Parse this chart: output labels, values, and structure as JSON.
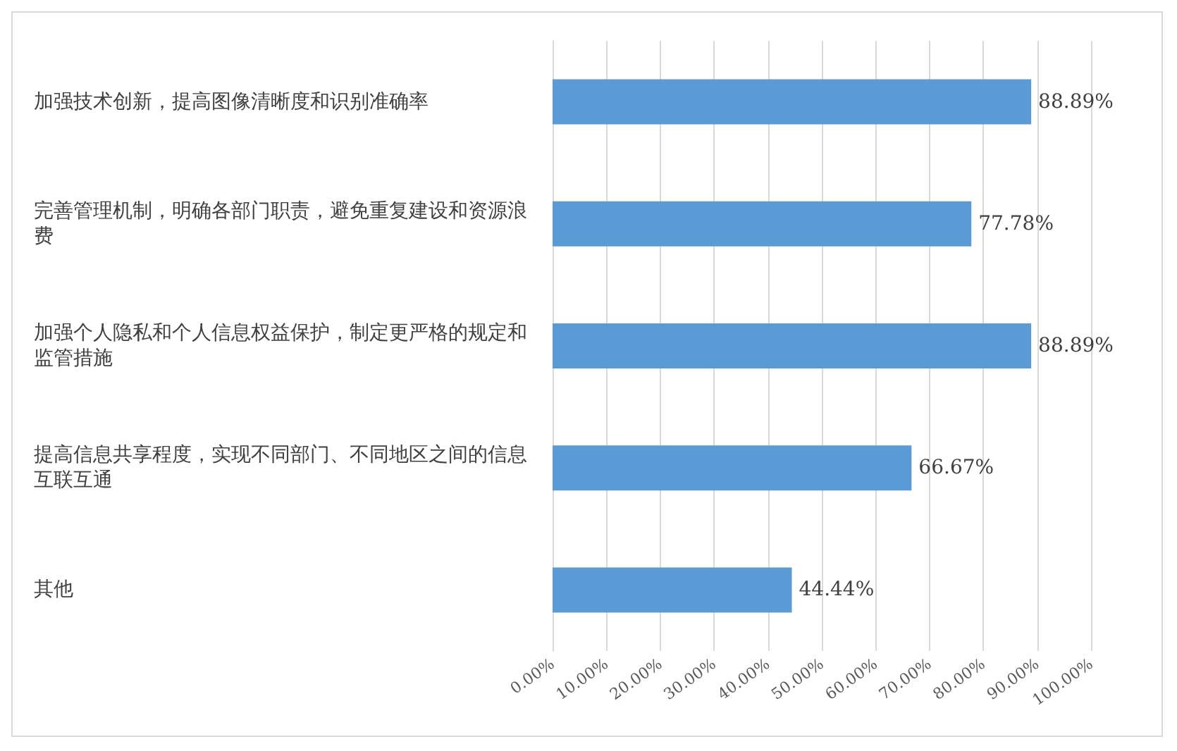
{
  "chart_data": {
    "type": "bar",
    "orientation": "horizontal",
    "categories": [
      "加强技术创新，提高图像清晰度和识别准确率",
      "完善管理机制，明确各部门职责，避免重复建设和资源浪费",
      "加强个人隐私和个人信息权益保护，制定更严格的规定和监管措施",
      "提高信息共享程度，实现不同部门、不同地区之间的信息互联互通",
      "其他"
    ],
    "values": [
      88.89,
      77.78,
      88.89,
      66.67,
      44.44
    ],
    "value_labels": [
      "88.89%",
      "77.78%",
      "88.89%",
      "66.67%",
      "44.44%"
    ],
    "color": "#5b9bd5",
    "xlim": [
      0,
      100
    ],
    "xticks": [
      {
        "value": 0,
        "label": "0.00%"
      },
      {
        "value": 10,
        "label": "10.00%"
      },
      {
        "value": 20,
        "label": "20.00%"
      },
      {
        "value": 30,
        "label": "30.00%"
      },
      {
        "value": 40,
        "label": "40.00%"
      },
      {
        "value": 50,
        "label": "50.00%"
      },
      {
        "value": 60,
        "label": "60.00%"
      },
      {
        "value": 70,
        "label": "70.00%"
      },
      {
        "value": 80,
        "label": "80.00%"
      },
      {
        "value": 90,
        "label": "90.00%"
      },
      {
        "value": 100,
        "label": "100.00%"
      }
    ],
    "grid": "x"
  }
}
